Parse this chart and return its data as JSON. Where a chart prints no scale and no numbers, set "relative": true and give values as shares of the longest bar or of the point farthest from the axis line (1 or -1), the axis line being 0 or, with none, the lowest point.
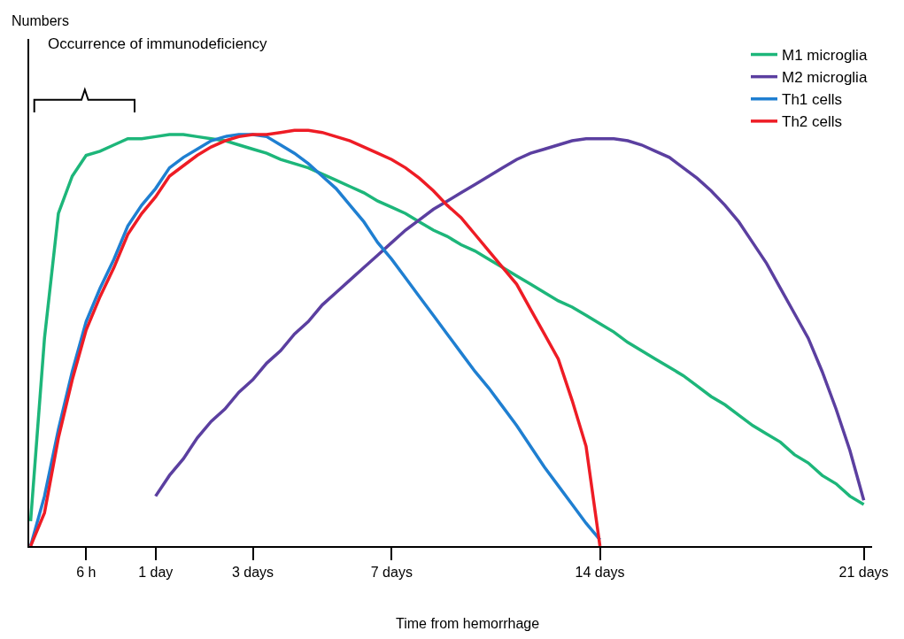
{
  "chart_data": {
    "type": "line",
    "relative": true,
    "xlabel": "Time from hemorrhage",
    "categories": [
      null,
      null,
      null,
      null,
      "6 h",
      null,
      null,
      null,
      null,
      "1 day",
      null,
      null,
      null,
      null,
      null,
      null,
      "3 days",
      null,
      null,
      null,
      null,
      null,
      null,
      null,
      null,
      null,
      "7 days",
      null,
      null,
      null,
      null,
      null,
      null,
      null,
      null,
      null,
      null,
      null,
      null,
      null,
      null,
      "14 days",
      null,
      null,
      null,
      null,
      null,
      null,
      null,
      null,
      null,
      null,
      null,
      null,
      null,
      null,
      null,
      null,
      null,
      null,
      "21 days"
    ],
    "series": [
      {
        "name": "M1 microglia",
        "color": "#1db67a",
        "values": [
          0.06,
          0.5,
          0.8,
          0.89,
          0.94,
          0.95,
          0.965,
          0.98,
          0.98,
          0.985,
          0.99,
          0.99,
          0.985,
          0.98,
          0.975,
          0.965,
          0.955,
          0.945,
          0.93,
          0.92,
          0.91,
          0.895,
          0.88,
          0.865,
          0.85,
          0.83,
          0.815,
          0.8,
          0.78,
          0.76,
          0.745,
          0.725,
          0.71,
          0.69,
          0.67,
          0.65,
          0.63,
          0.61,
          0.59,
          0.575,
          0.555,
          0.535,
          0.515,
          0.49,
          0.47,
          0.45,
          0.43,
          0.41,
          0.385,
          0.36,
          0.34,
          0.315,
          0.29,
          0.27,
          0.25,
          0.22,
          0.2,
          0.17,
          0.15,
          0.12,
          0.1
        ]
      },
      {
        "name": "M2 microglia",
        "color": "#5b3fa0",
        "values": [
          null,
          null,
          null,
          null,
          null,
          null,
          null,
          null,
          null,
          0.12,
          0.17,
          0.21,
          0.26,
          0.3,
          0.33,
          0.37,
          0.4,
          0.44,
          0.47,
          0.51,
          0.54,
          0.58,
          0.61,
          0.64,
          0.67,
          0.7,
          0.73,
          0.76,
          0.785,
          0.81,
          0.83,
          0.85,
          0.87,
          0.89,
          0.91,
          0.93,
          0.945,
          0.955,
          0.965,
          0.975,
          0.98,
          0.98,
          0.98,
          0.975,
          0.965,
          0.95,
          0.935,
          0.91,
          0.885,
          0.855,
          0.82,
          0.78,
          0.73,
          0.68,
          0.62,
          0.56,
          0.5,
          0.42,
          0.33,
          0.23,
          0.11
        ]
      },
      {
        "name": "Th1 cells",
        "color": "#1f7fd1",
        "values": [
          0.0,
          0.12,
          0.28,
          0.42,
          0.54,
          0.62,
          0.69,
          0.77,
          0.82,
          0.86,
          0.91,
          0.935,
          0.955,
          0.975,
          0.985,
          0.99,
          0.99,
          0.985,
          0.965,
          0.945,
          0.92,
          0.89,
          0.86,
          0.82,
          0.78,
          0.73,
          0.69,
          0.645,
          0.6,
          0.555,
          0.51,
          0.465,
          0.42,
          0.38,
          0.335,
          0.29,
          0.24,
          0.19,
          0.145,
          0.1,
          0.055,
          0.015,
          null,
          null,
          null,
          null,
          null,
          null,
          null,
          null,
          null,
          null,
          null,
          null,
          null,
          null,
          null,
          null,
          null,
          null,
          null
        ]
      },
      {
        "name": "Th2 cells",
        "color": "#ee1c25",
        "values": [
          0.0,
          0.08,
          0.26,
          0.4,
          0.52,
          0.6,
          0.67,
          0.75,
          0.8,
          0.84,
          0.89,
          0.915,
          0.94,
          0.96,
          0.975,
          0.985,
          0.99,
          0.99,
          0.995,
          1.0,
          1.0,
          0.995,
          0.985,
          0.975,
          0.96,
          0.945,
          0.93,
          0.91,
          0.885,
          0.855,
          0.82,
          0.79,
          0.75,
          0.71,
          0.67,
          0.63,
          0.57,
          0.51,
          0.45,
          0.35,
          0.24,
          0.0,
          null,
          null,
          null,
          null,
          null,
          null,
          null,
          null,
          null,
          null,
          null,
          null,
          null,
          null,
          null,
          null,
          null,
          null,
          null
        ]
      }
    ],
    "annotations": [
      "Numbers",
      "Occurrence of immunodeficiency"
    ],
    "legend": "top right",
    "marker": "none",
    "line_style": "solid"
  }
}
